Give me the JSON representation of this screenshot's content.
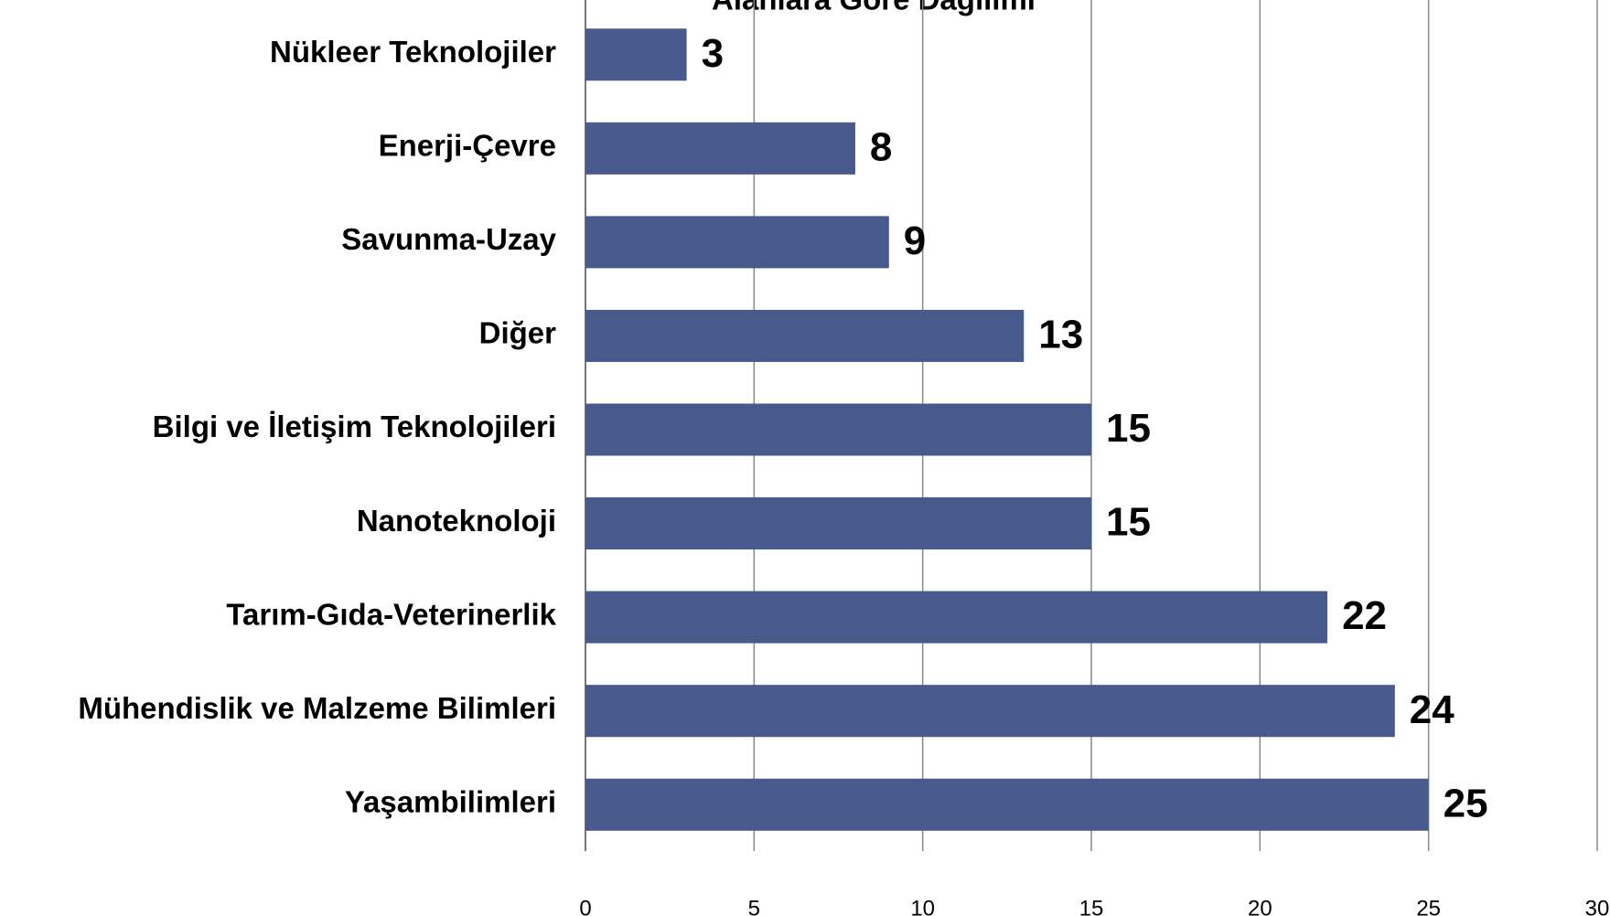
{
  "chart_data": {
    "type": "barh",
    "title": "Alanlara Göre Dağılımı",
    "categories": [
      "Nükleer Teknolojiler",
      "Enerji-Çevre",
      "Savunma-Uzay",
      "Diğer",
      "Bilgi ve İletişim Teknolojileri",
      "Nanoteknoloji",
      "Tarım-Gıda-Veterinerlik",
      "Mühendislik ve Malzeme Bilimleri",
      "Yaşambilimleri"
    ],
    "values": [
      3,
      8,
      9,
      13,
      15,
      15,
      22,
      24,
      25
    ],
    "color": "#485a8c",
    "xlim": [
      0,
      30
    ],
    "xticks": [
      0,
      5,
      10,
      15,
      20,
      25,
      30
    ],
    "grid": true
  }
}
